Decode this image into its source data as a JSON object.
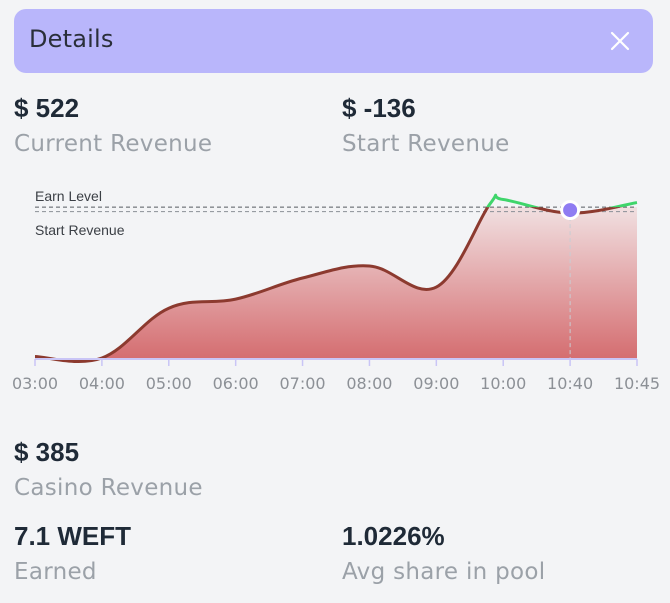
{
  "header": {
    "title": "Details",
    "close_icon": "close-icon"
  },
  "stats": {
    "current_revenue": {
      "value": "$ 522",
      "label": "Current Revenue"
    },
    "start_revenue": {
      "value": "$ -136",
      "label": "Start Revenue"
    },
    "casino_revenue": {
      "value": "$ 385",
      "label": "Casino Revenue"
    },
    "earned": {
      "value": "7.1 WEFT",
      "label": "Earned"
    },
    "avg_share": {
      "value": "1.0226%",
      "label": "Avg share in pool"
    }
  },
  "chart_data": {
    "type": "line",
    "categories": [
      "03:00",
      "04:00",
      "05:00",
      "06:00",
      "07:00",
      "08:00",
      "09:00",
      "10:00",
      "10:40",
      "10:45"
    ],
    "annotations": {
      "earn_level": "Earn Level",
      "start_revenue": "Start Revenue"
    },
    "series": [
      {
        "name": "",
        "points": [
          {
            "x": 0.0,
            "y": 0.01
          },
          {
            "x": 1.0,
            "y": 0.0
          },
          {
            "x": 2.0,
            "y": 0.33
          },
          {
            "x": 3.0,
            "y": 0.39
          },
          {
            "x": 4.0,
            "y": 0.53
          },
          {
            "x": 5.0,
            "y": 0.61
          },
          {
            "x": 6.0,
            "y": 0.47
          },
          {
            "x": 6.8,
            "y": 1.02
          },
          {
            "x": 7.0,
            "y": 1.05
          },
          {
            "x": 8.0,
            "y": 0.96
          },
          {
            "x": 9.0,
            "y": 1.03
          }
        ]
      }
    ],
    "earn_level": 1.0,
    "start_level": 0.97,
    "ylim": [
      0,
      1.1
    ],
    "marker_index": 8,
    "colors": {
      "below_line": "#8c3a2f",
      "above_line": "#3fd56b",
      "fill_top": "#f3e9ea",
      "fill_bottom": "#d46b6e",
      "marker": "#8f7cf2",
      "axis": "#c9c5f6"
    }
  }
}
